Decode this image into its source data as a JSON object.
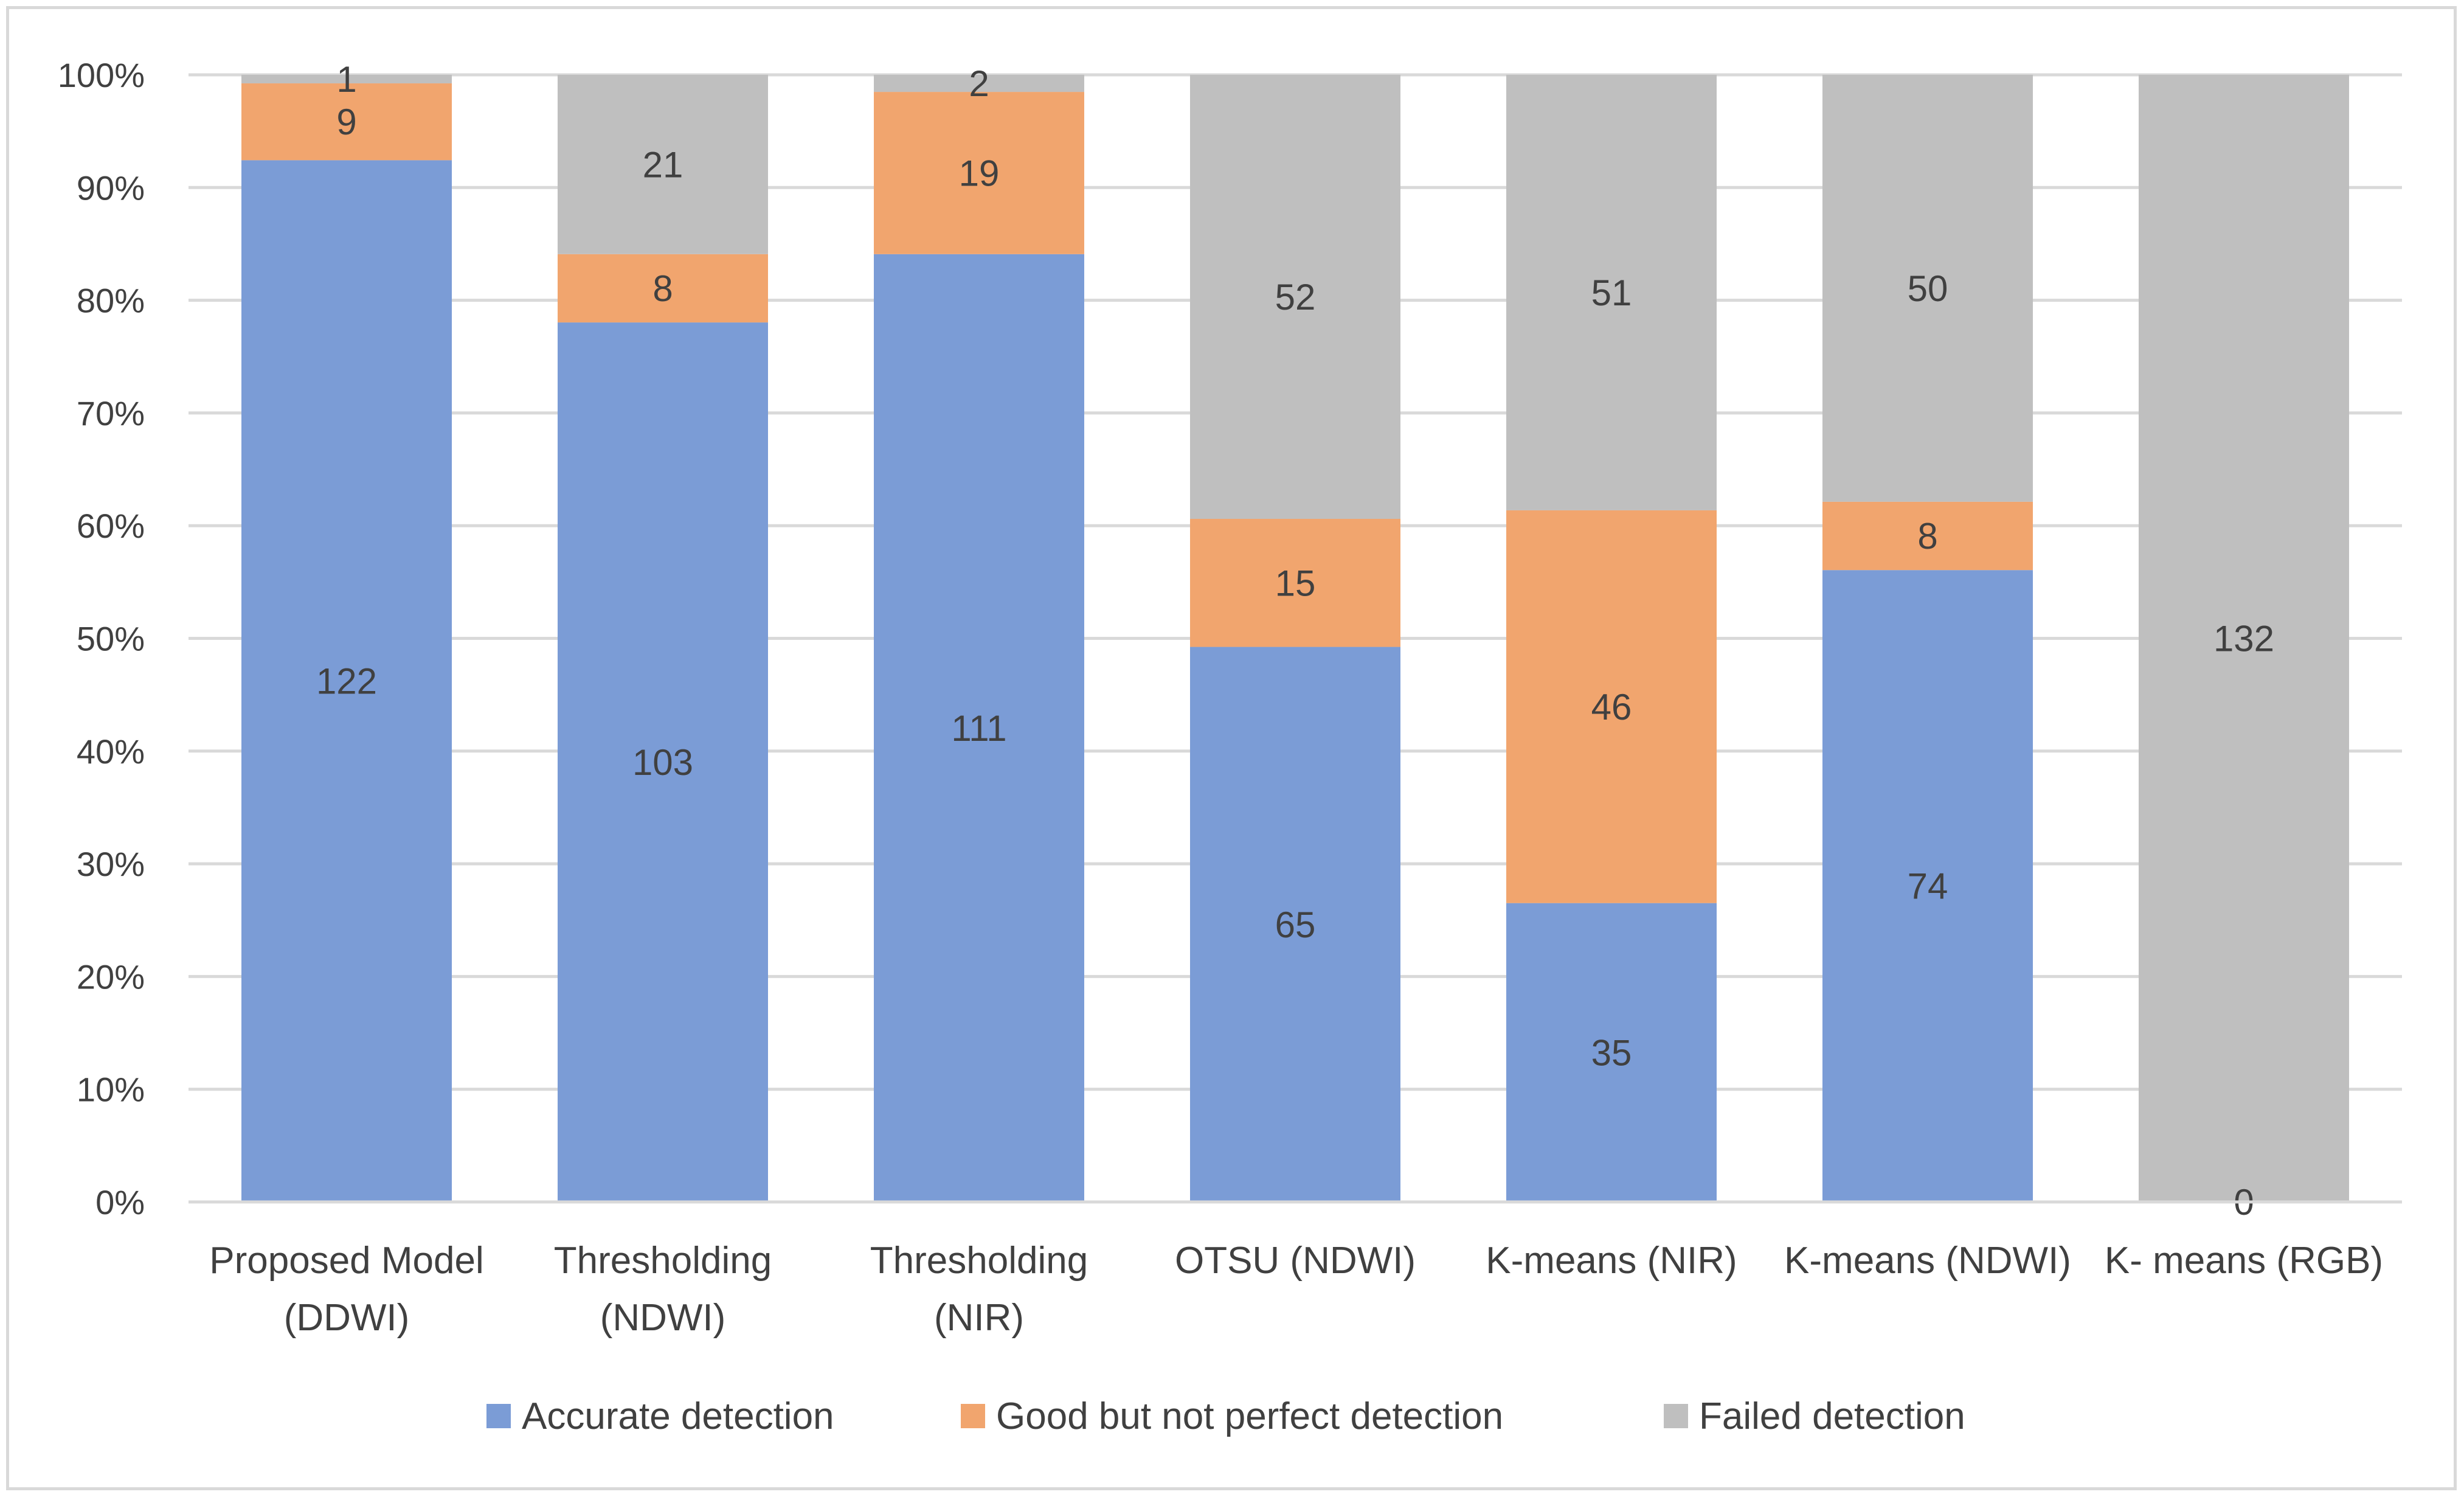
{
  "chart_data": {
    "type": "bar",
    "stacked": "percent",
    "title": "",
    "xlabel": "",
    "ylabel": "",
    "ylim": [
      0,
      100
    ],
    "y_ticks": [
      "0%",
      "10%",
      "20%",
      "30%",
      "40%",
      "50%",
      "60%",
      "70%",
      "80%",
      "90%",
      "100%"
    ],
    "grid": true,
    "legend_position": "bottom",
    "categories": [
      [
        "Proposed Model",
        "(DDWI)"
      ],
      [
        "Thresholding",
        "(NDWI)"
      ],
      [
        "Thresholding",
        "(NIR)"
      ],
      [
        "OTSU (NDWI)"
      ],
      [
        "K-means (NIR)"
      ],
      [
        "K-means (NDWI)"
      ],
      [
        "K- means (RGB)"
      ]
    ],
    "series": [
      {
        "name": "Accurate detection",
        "color": "#7b9cd6",
        "values": [
          122,
          103,
          111,
          65,
          35,
          74,
          0
        ]
      },
      {
        "name": "Good but not perfect detection",
        "color": "#f1a56e",
        "values": [
          9,
          8,
          19,
          15,
          46,
          8,
          0
        ]
      },
      {
        "name": "Failed detection",
        "color": "#bfbfbf",
        "values": [
          1,
          21,
          2,
          52,
          51,
          50,
          132
        ]
      }
    ]
  }
}
